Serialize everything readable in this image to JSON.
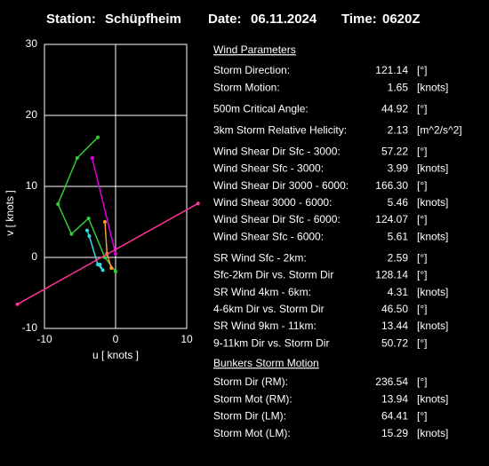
{
  "header": {
    "station_label": "Station:",
    "station": "Schüpfheim",
    "date_label": "Date:",
    "date": "06.11.2024",
    "time_label": "Time:",
    "time": "0620Z"
  },
  "chart_data": {
    "type": "line",
    "xlabel": "u  [ knots ]",
    "ylabel": "v  [ knots ]",
    "xlim": [
      -10,
      10
    ],
    "ylim": [
      -10,
      30
    ],
    "xticks": [
      -10,
      0,
      10
    ],
    "yticks": [
      -10,
      0,
      10,
      20,
      30
    ],
    "grid": true,
    "series": [
      {
        "color": "#33cc33",
        "x": [
          -2.5,
          -5.4,
          -8.1,
          -6.2,
          -3.8,
          -1.5,
          0
        ],
        "values": [
          16.9,
          14,
          7.5,
          3.3,
          5.5,
          0,
          -2
        ]
      },
      {
        "color": "#33dddd",
        "x": [
          -4,
          -3.7,
          -2.5,
          -1.8,
          -2.2
        ],
        "values": [
          3.8,
          3,
          -1,
          -1.8,
          -1
        ]
      },
      {
        "color": "#ff9933",
        "x": [
          -1.5,
          -1.2,
          -0.6
        ],
        "values": [
          5,
          0.5,
          -1.5
        ]
      },
      {
        "color": "#dd00dd",
        "x": [
          0,
          -3.3
        ],
        "values": [
          0.5,
          14
        ]
      },
      {
        "color": "#ff3399",
        "x": [
          -13.8,
          11.6
        ],
        "values": [
          -6.6,
          7.6
        ]
      }
    ]
  },
  "parameters": {
    "title": "Wind Parameters",
    "groups": [
      [
        {
          "label": "Storm Direction:",
          "value": "121.14",
          "unit": "[°]",
          "color": "#ff2020"
        },
        {
          "label": "Storm Motion:",
          "value": "1.65",
          "unit": "[knots]",
          "color": "#ff2020"
        }
      ],
      [
        {
          "label": "500m Critical Angle:",
          "value": "44.92",
          "unit": "[°]",
          "color": "#ee88ff"
        }
      ],
      [
        {
          "label": "3km Storm Relative Helicity:",
          "value": "2.13",
          "unit": "[m^2/s^2]",
          "color": "#33cc33"
        }
      ],
      [
        {
          "label": "Wind Shear Dir Sfc - 3000:",
          "value": "57.22",
          "unit": "[°]",
          "color": "#33dddd"
        },
        {
          "label": "Wind Shear Sfc - 3000:",
          "value": "3.99",
          "unit": "[knots]",
          "color": "#33dddd"
        },
        {
          "label": "Wind Shear Dir 3000 - 6000:",
          "value": "166.30",
          "unit": "[°]",
          "color": "#33dddd"
        },
        {
          "label": "Wind Shear 3000 - 6000:",
          "value": "5.46",
          "unit": "[knots]",
          "color": "#33dddd"
        },
        {
          "label": "Wind Shear Dir Sfc - 6000:",
          "value": "124.07",
          "unit": "[°]",
          "color": "#33dddd"
        },
        {
          "label": "Wind Shear Sfc - 6000:",
          "value": "5.61",
          "unit": "[knots]",
          "color": "#33dddd"
        }
      ],
      [
        {
          "label": "SR Wind Sfc - 2km:",
          "value": "2.59",
          "unit": "[°]",
          "color": "#ffff33"
        },
        {
          "label": "Sfc-2km Dir vs. Storm Dir",
          "value": "128.14",
          "unit": "[°]",
          "color": "#ffff33"
        },
        {
          "label": "SR Wind 4km - 6km:",
          "value": "4.31",
          "unit": "[knots]",
          "color": "#ff9933"
        },
        {
          "label": "4-6km Dir vs. Storm Dir",
          "value": "46.50",
          "unit": "[°]",
          "color": "#ff9933"
        },
        {
          "label": "SR Wind 9km - 11km:",
          "value": "13.44",
          "unit": "[knots]",
          "color": "#dd00dd"
        },
        {
          "label": "9-11km Dir vs. Storm Dir",
          "value": "50.72",
          "unit": "[°]",
          "color": "#dd00dd"
        }
      ]
    ],
    "bunkers_title": "Bunkers Storm Motion",
    "bunkers": [
      {
        "label": "Storm Dir (RM):",
        "value": "236.54",
        "unit": "[°]",
        "color": "#ff2266"
      },
      {
        "label": "Storm Mot (RM):",
        "value": "13.94",
        "unit": "[knots]",
        "color": "#ff2266"
      },
      {
        "label": "Storm Dir (LM):",
        "value": "64.41",
        "unit": "[°]",
        "color": "#ff2266"
      },
      {
        "label": "Storm Mot (LM):",
        "value": "15.29",
        "unit": "[knots]",
        "color": "#ff2266"
      }
    ]
  }
}
